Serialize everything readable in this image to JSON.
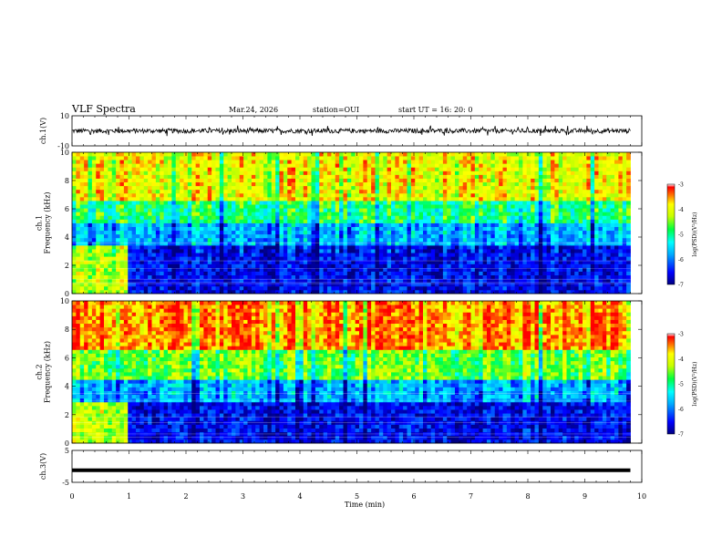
{
  "header": {
    "title": "VLF Spectra",
    "date": "Mar.24, 2026",
    "station": "station=OUI",
    "start": "start  UT =   16: 20: 0"
  },
  "chart_data": [
    {
      "type": "line",
      "name": "ch1-waveform",
      "ylabel": "ch.1(V)",
      "ylim": [
        -10,
        10
      ],
      "yticks": [
        {
          "v": 10,
          "label": "10"
        },
        {
          "v": -10,
          "label": "-10"
        }
      ],
      "xlim": [
        0,
        10
      ],
      "data_end_min": 9.8,
      "signal": "dense black waveform centred near 0 V, roughly +/-1.5 V with sparse spikes to about +/-3 V"
    },
    {
      "type": "heatmap",
      "name": "ch1-spectrogram",
      "ylabel": "ch.1\nFrequency (kHz)",
      "ylim": [
        0,
        10
      ],
      "yticks": [
        "0",
        "2",
        "4",
        "6",
        "8",
        "10"
      ],
      "xlim": [
        0,
        10
      ],
      "data_end_min": 9.8,
      "colorbar": {
        "label": "log(PSD)(V²/Hz)",
        "range": [
          -7,
          -3
        ],
        "ticks": [
          "-3",
          "-4",
          "-5",
          "-6",
          "-7"
        ]
      },
      "bands": [
        {
          "from_khz": 0,
          "to_khz": 3.5,
          "level": -6.5
        },
        {
          "from_khz": 3.5,
          "to_khz": 5,
          "level": -5.7
        },
        {
          "from_khz": 5,
          "to_khz": 6.5,
          "level": -4.9
        },
        {
          "from_khz": 6.5,
          "to_khz": 10,
          "level": -3.9
        }
      ],
      "early_interval": {
        "end_min": 1.0,
        "below_khz": 3.5,
        "level": -4.2
      }
    },
    {
      "type": "heatmap",
      "name": "ch2-spectrogram",
      "ylabel": "ch.2\nFrequency (kHz)",
      "ylim": [
        0,
        10
      ],
      "yticks": [
        "0",
        "2",
        "4",
        "6",
        "8",
        "10"
      ],
      "xlim": [
        0,
        10
      ],
      "data_end_min": 9.8,
      "colorbar": {
        "label": "log(PSD)(V²/Hz)",
        "range": [
          -7,
          -3
        ],
        "ticks": [
          "-3",
          "-4",
          "-5",
          "-6",
          "-7"
        ]
      },
      "bands": [
        {
          "from_khz": 0,
          "to_khz": 3.0,
          "level": -6.5
        },
        {
          "from_khz": 3.0,
          "to_khz": 4.5,
          "level": -5.7
        },
        {
          "from_khz": 4.5,
          "to_khz": 6.5,
          "level": -4.5
        },
        {
          "from_khz": 6.5,
          "to_khz": 10,
          "level": -3.4
        }
      ],
      "early_interval": {
        "end_min": 1.0,
        "below_khz": 3.0,
        "level": -4.2
      }
    },
    {
      "type": "line",
      "name": "ch3-waveform",
      "ylabel": "ch.3(V)",
      "ylim": [
        -5,
        5
      ],
      "yticks": [
        {
          "v": 5,
          "label": "5"
        },
        {
          "v": -5,
          "label": "-5"
        }
      ],
      "xlim": [
        0,
        10
      ],
      "data_end_min": 9.8,
      "level": -1.2
    }
  ],
  "xaxis": {
    "label": "Time (min)",
    "ticks": [
      "0",
      "1",
      "2",
      "3",
      "4",
      "5",
      "6",
      "7",
      "8",
      "9",
      "10"
    ]
  }
}
